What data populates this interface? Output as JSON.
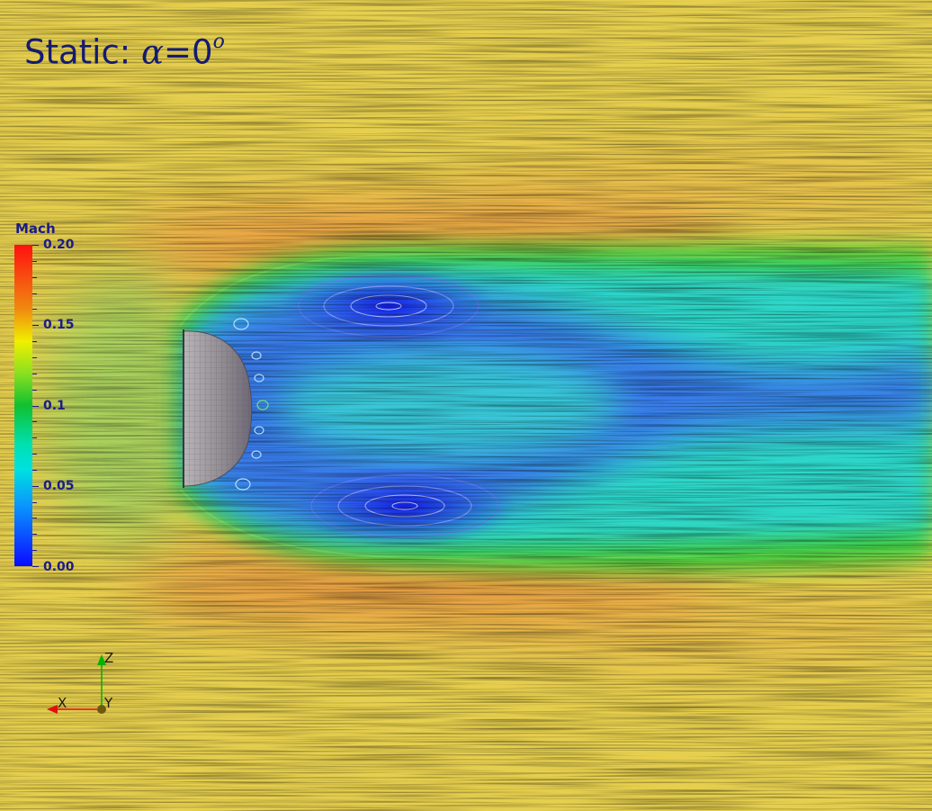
{
  "title": {
    "prefix": "Static: ",
    "symbol": "α",
    "rest": "=0",
    "superscript": "o",
    "color": "#141b73"
  },
  "colorbar": {
    "title": "Mach",
    "label_color": "#1b1b8a",
    "labels": [
      "0.20",
      "0.15",
      "0.1",
      "0.05",
      "0.00"
    ],
    "range": [
      0.0,
      0.2
    ],
    "colormap": [
      "#0a0aff",
      "#00e0e0",
      "#10c030",
      "#f0f000",
      "#ff1010"
    ]
  },
  "axes_triad": {
    "z_label": "Z",
    "x_label": "X",
    "y_label": "Y",
    "z_color": "#00b300",
    "x_color": "#e01010",
    "y_color": "#6b5a10"
  },
  "field": {
    "freestream_color": "#e8d24e",
    "wake_core_color": "#2030ee"
  }
}
